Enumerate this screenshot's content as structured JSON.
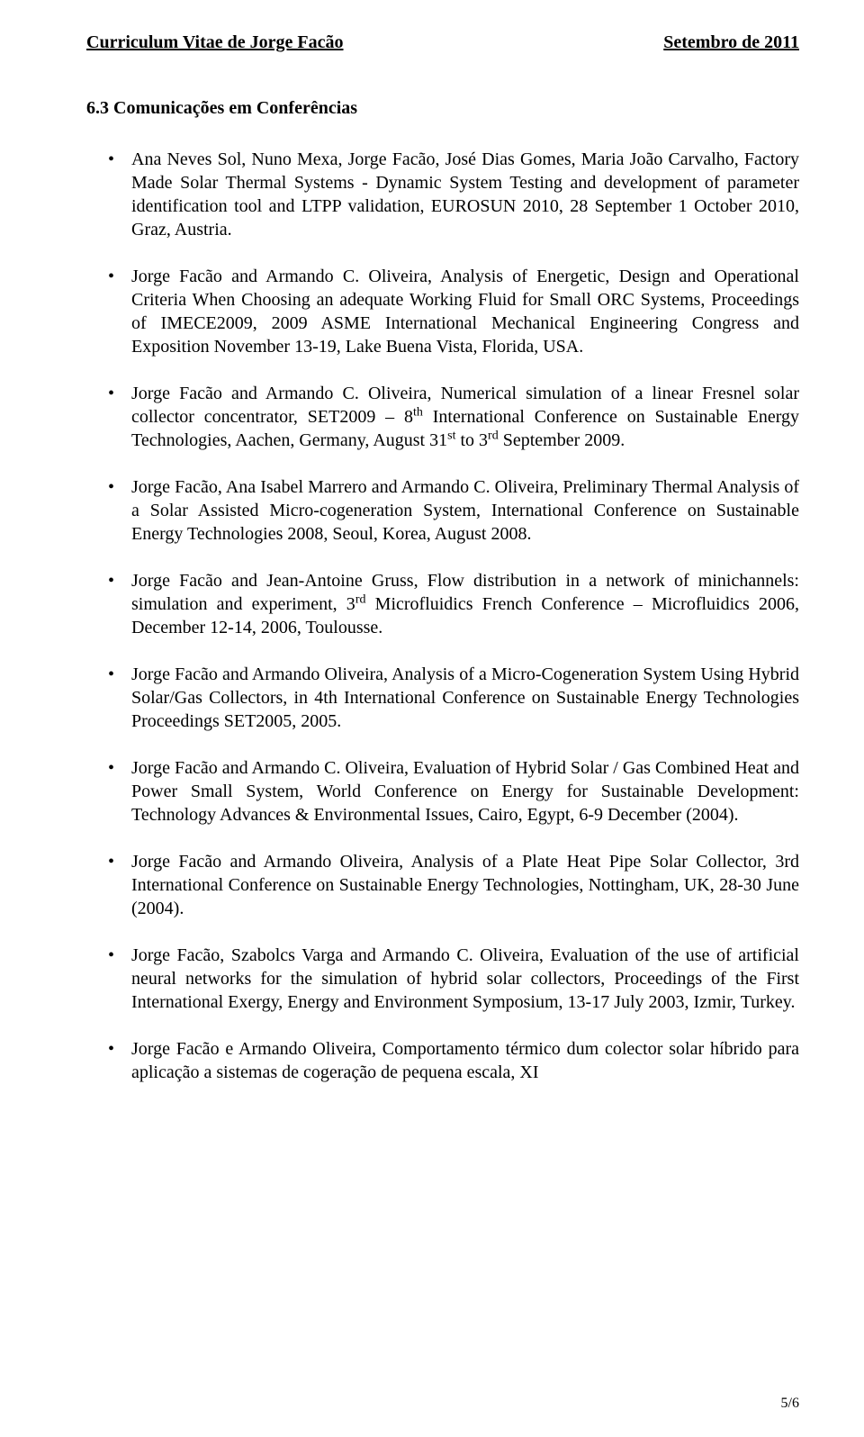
{
  "header": {
    "left": "Curriculum Vitae de Jorge Facão",
    "right": "Setembro de 2011"
  },
  "section": {
    "heading": "6.3 Comunicações em Conferências"
  },
  "publications": [
    "Ana Neves Sol, Nuno Mexa, Jorge Facão, José Dias Gomes, Maria João Carvalho, Factory Made Solar Thermal Systems - Dynamic System Testing and development of parameter identification tool and LTPP validation, EUROSUN 2010, 28 September 1 October 2010, Graz, Austria.",
    "Jorge Facão and Armando C. Oliveira, Analysis of Energetic, Design and Operational Criteria When Choosing an adequate Working Fluid for Small ORC Systems, Proceedings of IMECE2009, 2009 ASME International Mechanical Engineering Congress and Exposition November 13-19, Lake Buena Vista, Florida, USA.",
    "Jorge Facão and Armando C. Oliveira, Numerical simulation of a linear Fresnel solar collector concentrator, SET2009 – 8<sup>th</sup> International Conference on Sustainable Energy Technologies, Aachen, Germany, August 31<sup>st</sup> to 3<sup>rd</sup> September 2009.",
    "Jorge Facão, Ana Isabel Marrero and Armando C. Oliveira, Preliminary Thermal Analysis of a Solar Assisted Micro-cogeneration System, International Conference on Sustainable Energy Technologies 2008, Seoul, Korea, August 2008.",
    "Jorge Facão and Jean-Antoine Gruss, Flow distribution in a network of minichannels: simulation and experiment, 3<sup>rd</sup> Microfluidics French Conference – Microfluidics 2006, December 12-14, 2006, Toulousse.",
    "Jorge Facão and Armando Oliveira, Analysis of a Micro-Cogeneration System Using Hybrid Solar/Gas Collectors, in 4th International Conference on Sustainable Energy Technologies Proceedings SET2005, 2005.",
    "Jorge Facão and Armando C. Oliveira, Evaluation of Hybrid Solar / Gas Combined Heat and Power Small System, World Conference on Energy for Sustainable Development: Technology Advances & Environmental Issues, Cairo, Egypt, 6-9 December (2004).",
    "Jorge Facão and Armando Oliveira, Analysis of a Plate Heat Pipe Solar Collector, 3rd International Conference on Sustainable Energy Technologies, Nottingham, UK, 28-30 June (2004).",
    "Jorge Facão, Szabolcs Varga and Armando C. Oliveira, Evaluation of the use of artificial neural networks for the simulation of hybrid solar collectors, Proceedings of the First International Exergy, Energy and Environment Symposium, 13-17 July 2003, Izmir, Turkey.",
    "Jorge Facão e Armando Oliveira, Comportamento térmico dum colector solar híbrido para aplicação a sistemas de cogeração de pequena escala, XI"
  ],
  "footer": {
    "page_label": "5/6"
  }
}
